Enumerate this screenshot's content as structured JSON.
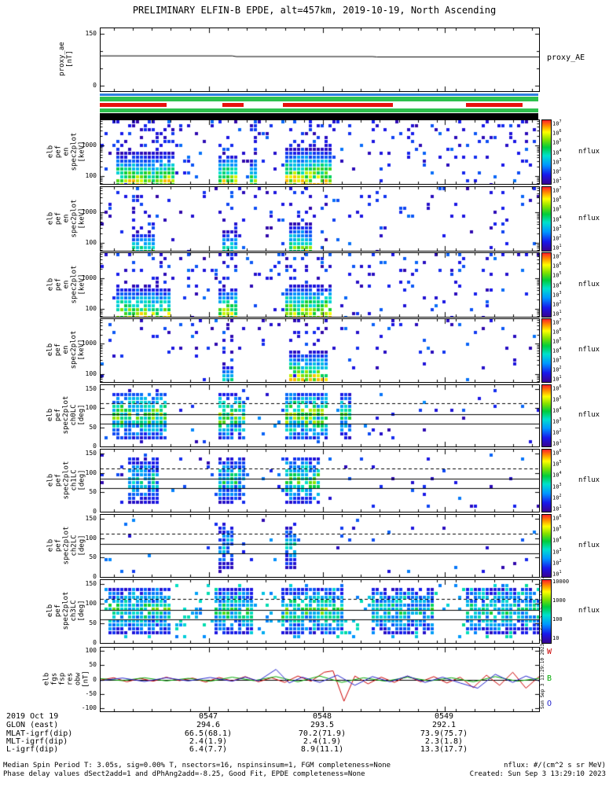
{
  "title": "PRELIMINARY ELFIN-B EPDE, alt=457km, 2019-10-19, North Ascending",
  "vertical_note": "Sun Sep 3 13:29:10 2023",
  "footer": {
    "left1": "Median Spin Period T: 3.05s, sig=0.00% T, nsectors=16, nspinsinsum=1, FGM completeness=None",
    "left2": "Phase delay values dSect2add=1 and dPhAng2add=-8.25, Good Fit, EPDE completeness=None",
    "right1": "nflux: #/(cm^2 s sr MeV)",
    "right2": "Created: Sun Sep  3 13:29:10 2023"
  },
  "ephemeris": {
    "rows": [
      {
        "label": "2019 Oct 19",
        "values": [
          "0547",
          "0548",
          "0549"
        ]
      },
      {
        "label": "GLON (east)",
        "values": [
          "294.6",
          "293.5",
          "292.1"
        ]
      },
      {
        "label": "MLAT-igrf(dip)",
        "values": [
          "66.5(68.1)",
          "70.2(71.9)",
          "73.9(75.7)"
        ]
      },
      {
        "label": "MLT-igrf(dip)",
        "values": [
          "2.4(1.9)",
          "2.4(1.9)",
          "2.3(1.8)"
        ]
      },
      {
        "label": "L-igrf(dip)",
        "values": [
          "6.4(7.7)",
          "8.9(11.1)",
          "13.3(17.7)"
        ]
      }
    ]
  },
  "position_bars": [
    {
      "name": "blue",
      "color": "#2f7fe0",
      "segments": [
        [
          0,
          1
        ]
      ]
    },
    {
      "name": "green-upper",
      "color": "#2ec14e",
      "segments": [
        [
          0,
          1
        ]
      ]
    },
    {
      "name": "red",
      "color": "#e8110e",
      "segments": [
        [
          0,
          0.152
        ],
        [
          0.28,
          0.328
        ],
        [
          0.418,
          0.668
        ],
        [
          0.835,
          0.964
        ]
      ]
    },
    {
      "name": "green-lower",
      "color": "#2ec14e",
      "segments": [
        [
          0,
          1
        ]
      ]
    },
    {
      "name": "black",
      "color": "#000000",
      "segments": [
        [
          0,
          1
        ]
      ]
    }
  ],
  "chart_data": [
    {
      "id": "proxy",
      "type": "line",
      "ylabel_lines": [
        "proxy_ae",
        "[nT]"
      ],
      "right_label": "proxy_AE",
      "ylim": [
        -15,
        165
      ],
      "yticks": [
        {
          "v": 150,
          "label": "150"
        },
        {
          "v": 100
        },
        {
          "v": 50
        },
        {
          "v": 0,
          "label": "0"
        }
      ],
      "series": [
        {
          "name": "proxy_AE",
          "color": "#000000",
          "points": [
            [
              0,
              86
            ],
            [
              0.3,
              86
            ],
            [
              0.31,
              84
            ],
            [
              0.62,
              84
            ],
            [
              0.63,
              83
            ],
            [
              1,
              83
            ]
          ]
        }
      ]
    },
    {
      "id": "en0",
      "type": "energy",
      "ylabel_lines": [
        "elb",
        "pef",
        "en",
        "spec2plot",
        "[keV]"
      ],
      "yscale": "log",
      "ylim": [
        55,
        6500
      ],
      "yticks": [
        {
          "v": 1000,
          "label": "1000"
        },
        {
          "v": 100,
          "label": "100"
        }
      ],
      "colorbar": {
        "kind": "pow10",
        "exps": [
          7,
          6,
          5,
          4,
          3,
          2,
          1
        ],
        "label": "nflux"
      },
      "seed": 11,
      "noise": 0.1,
      "bursts": [
        {
          "x0": 0.035,
          "x1": 0.17,
          "amp": 0.82,
          "eh": 0.52
        },
        {
          "x0": 0.265,
          "x1": 0.315,
          "amp": 0.85,
          "eh": 0.5
        },
        {
          "x0": 0.335,
          "x1": 0.36,
          "amp": 0.7,
          "eh": 0.42
        },
        {
          "x0": 0.42,
          "x1": 0.53,
          "amp": 0.9,
          "eh": 0.58
        }
      ]
    },
    {
      "id": "en1",
      "type": "energy",
      "ylabel_lines": [
        "elb",
        "pef",
        "en",
        "spec2plot",
        "[keV]"
      ],
      "yscale": "log",
      "ylim": [
        55,
        6500
      ],
      "yticks": [
        {
          "v": 1000,
          "label": "1000"
        },
        {
          "v": 100,
          "label": "100"
        }
      ],
      "colorbar": {
        "kind": "pow10",
        "exps": [
          7,
          6,
          5,
          4,
          3,
          2,
          1
        ],
        "label": "nflux"
      },
      "seed": 22,
      "noise": 0.05,
      "bursts": [
        {
          "x0": 0.07,
          "x1": 0.125,
          "amp": 0.55,
          "eh": 0.33
        },
        {
          "x0": 0.275,
          "x1": 0.315,
          "amp": 0.55,
          "eh": 0.35
        },
        {
          "x0": 0.43,
          "x1": 0.48,
          "amp": 0.68,
          "eh": 0.45
        }
      ]
    },
    {
      "id": "en2",
      "type": "energy",
      "ylabel_lines": [
        "elb",
        "pef",
        "en",
        "spec2plot",
        "[keV]"
      ],
      "yscale": "log",
      "ylim": [
        55,
        6500
      ],
      "yticks": [
        {
          "v": 1000,
          "label": "1000"
        },
        {
          "v": 100,
          "label": "100"
        }
      ],
      "colorbar": {
        "kind": "pow10",
        "exps": [
          7,
          6,
          5,
          4,
          3,
          2,
          1
        ],
        "label": "nflux"
      },
      "seed": 33,
      "noise": 0.08,
      "bursts": [
        {
          "x0": 0.035,
          "x1": 0.165,
          "amp": 0.78,
          "eh": 0.5
        },
        {
          "x0": 0.265,
          "x1": 0.315,
          "amp": 0.8,
          "eh": 0.5
        },
        {
          "x0": 0.42,
          "x1": 0.525,
          "amp": 0.85,
          "eh": 0.55
        }
      ]
    },
    {
      "id": "en3",
      "type": "energy",
      "ylabel_lines": [
        "elb",
        "pef",
        "en",
        "spec2plot",
        "[keV]"
      ],
      "yscale": "log",
      "ylim": [
        55,
        6500
      ],
      "yticks": [
        {
          "v": 1000,
          "label": "1000"
        },
        {
          "v": 100,
          "label": "100"
        }
      ],
      "colorbar": {
        "kind": "pow10",
        "exps": [
          7,
          6,
          5,
          4,
          3,
          2,
          1
        ],
        "label": "nflux"
      },
      "seed": 44,
      "noise": 0.05,
      "bursts": [
        {
          "x0": 0.28,
          "x1": 0.305,
          "amp": 0.45,
          "eh": 0.28
        },
        {
          "x0": 0.425,
          "x1": 0.52,
          "amp": 0.8,
          "eh": 0.5
        }
      ]
    },
    {
      "id": "ch0",
      "type": "deg",
      "ylabel_lines": [
        "elb",
        "pef",
        "spec2plot",
        "ch0LC",
        "[deg]"
      ],
      "ylim": [
        0,
        160
      ],
      "yticks": [
        {
          "v": 150,
          "label": "150"
        },
        {
          "v": 100,
          "label": "100"
        },
        {
          "v": 50,
          "label": "50"
        },
        {
          "v": 0,
          "label": "0"
        }
      ],
      "lines": [
        {
          "deg": 112,
          "style": "dashed"
        },
        {
          "deg": 85,
          "style": "solid"
        },
        {
          "deg": 60,
          "style": "solid"
        }
      ],
      "colorbar": {
        "kind": "pow10",
        "exps": [
          6,
          5,
          4,
          3,
          2,
          1
        ],
        "label": "nflux"
      },
      "seed": 55,
      "noise": 0.04,
      "noiseV": [
        0.05,
        0.3
      ],
      "bursts": [
        {
          "x0": 0.03,
          "x1": 0.15,
          "amp": 0.6
        },
        {
          "x0": 0.265,
          "x1": 0.33,
          "amp": 0.62
        },
        {
          "x0": 0.42,
          "x1": 0.52,
          "amp": 0.68
        },
        {
          "x0": 0.545,
          "x1": 0.575,
          "amp": 0.5
        }
      ]
    },
    {
      "id": "ch1",
      "type": "deg",
      "ylabel_lines": [
        "elb",
        "pef",
        "spec2plot",
        "ch1LC",
        "[deg]"
      ],
      "ylim": [
        0,
        160
      ],
      "yticks": [
        {
          "v": 150,
          "label": "150"
        },
        {
          "v": 100,
          "label": "100"
        },
        {
          "v": 50,
          "label": "50"
        },
        {
          "v": 0,
          "label": "0"
        }
      ],
      "lines": [
        {
          "deg": 112,
          "style": "dashed"
        },
        {
          "deg": 85,
          "style": "solid"
        },
        {
          "deg": 60,
          "style": "solid"
        }
      ],
      "colorbar": {
        "kind": "pow10",
        "exps": [
          6,
          5,
          4,
          3,
          2,
          1
        ],
        "label": "nflux"
      },
      "seed": 66,
      "noise": 0.03,
      "noiseV": [
        0.05,
        0.28
      ],
      "bursts": [
        {
          "x0": 0.06,
          "x1": 0.13,
          "amp": 0.42
        },
        {
          "x0": 0.265,
          "x1": 0.33,
          "amp": 0.46
        },
        {
          "x0": 0.42,
          "x1": 0.5,
          "amp": 0.55
        }
      ]
    },
    {
      "id": "ch2",
      "type": "deg",
      "ylabel_lines": [
        "elb",
        "pef",
        "spec2plot",
        "ch2LC",
        "[deg]"
      ],
      "ylim": [
        0,
        160
      ],
      "yticks": [
        {
          "v": 150,
          "label": "150"
        },
        {
          "v": 100,
          "label": "100"
        },
        {
          "v": 50,
          "label": "50"
        },
        {
          "v": 0,
          "label": "0"
        }
      ],
      "lines": [
        {
          "deg": 112,
          "style": "dashed"
        },
        {
          "deg": 85,
          "style": "solid"
        },
        {
          "deg": 60,
          "style": "solid"
        }
      ],
      "colorbar": {
        "kind": "pow10",
        "exps": [
          6,
          5,
          4,
          3,
          2,
          1
        ],
        "label": "nflux"
      },
      "seed": 77,
      "noise": 0.025,
      "noiseV": [
        0.05,
        0.3
      ],
      "bursts": [
        {
          "x0": 0.27,
          "x1": 0.3,
          "amp": 0.34
        },
        {
          "x0": 0.42,
          "x1": 0.45,
          "amp": 0.36
        }
      ]
    },
    {
      "id": "ch3",
      "type": "deg",
      "ylabel_lines": [
        "elb",
        "pef",
        "spec2plot",
        "ch3LC",
        "[deg]"
      ],
      "ylim": [
        0,
        160
      ],
      "yticks": [
        {
          "v": 150,
          "label": "150"
        },
        {
          "v": 100,
          "label": "100"
        },
        {
          "v": 50,
          "label": "50"
        },
        {
          "v": 0,
          "label": "0"
        }
      ],
      "lines": [
        {
          "deg": 112,
          "style": "dashed"
        },
        {
          "deg": 85,
          "style": "solid"
        },
        {
          "deg": 60,
          "style": "solid"
        }
      ],
      "colorbar": {
        "kind": "plain",
        "labels": [
          "10000",
          "1000",
          "100",
          "10"
        ],
        "label": "nflux"
      },
      "seed": 88,
      "noise": 0.1,
      "noiseV": [
        0.25,
        0.5
      ],
      "bursts": [
        {
          "x0": 0.02,
          "x1": 0.165,
          "amp": 0.5
        },
        {
          "x0": 0.26,
          "x1": 0.35,
          "amp": 0.5
        },
        {
          "x0": 0.41,
          "x1": 0.55,
          "amp": 0.55
        },
        {
          "x0": 0.62,
          "x1": 0.76,
          "amp": 0.46
        },
        {
          "x0": 0.83,
          "x1": 1.0,
          "amp": 0.46
        }
      ]
    },
    {
      "id": "bfield",
      "type": "multiline",
      "ylabel_lines": [
        "elb",
        "fgs",
        "fsp",
        "res",
        "obw",
        "[nT]"
      ],
      "ylim": [
        -110,
        110
      ],
      "yticks": [
        {
          "v": 100,
          "label": "100"
        },
        {
          "v": 50,
          "label": "50"
        },
        {
          "v": 0,
          "label": "0"
        },
        {
          "v": -50,
          "label": "-50"
        },
        {
          "v": -100,
          "label": "-100"
        }
      ],
      "right_labels": [
        {
          "text": "W",
          "color": "#cc0000"
        },
        {
          "text": "B",
          "color": "#00aa00"
        },
        {
          "text": "O",
          "color": "#2222cc"
        }
      ],
      "series": [
        {
          "name": "W",
          "color": "#cc0000",
          "points": [
            [
              0,
              -2
            ],
            [
              0.03,
              6
            ],
            [
              0.06,
              -8
            ],
            [
              0.09,
              4
            ],
            [
              0.12,
              -6
            ],
            [
              0.15,
              8
            ],
            [
              0.18,
              -4
            ],
            [
              0.21,
              5
            ],
            [
              0.24,
              -9
            ],
            [
              0.27,
              7
            ],
            [
              0.3,
              -5
            ],
            [
              0.33,
              10
            ],
            [
              0.36,
              -8
            ],
            [
              0.39,
              6
            ],
            [
              0.42,
              -10
            ],
            [
              0.45,
              12
            ],
            [
              0.48,
              -6
            ],
            [
              0.51,
              25
            ],
            [
              0.53,
              30
            ],
            [
              0.555,
              -75
            ],
            [
              0.58,
              12
            ],
            [
              0.61,
              -15
            ],
            [
              0.64,
              8
            ],
            [
              0.67,
              -10
            ],
            [
              0.7,
              12
            ],
            [
              0.73,
              -8
            ],
            [
              0.76,
              10
            ],
            [
              0.79,
              -12
            ],
            [
              0.82,
              8
            ],
            [
              0.85,
              -28
            ],
            [
              0.88,
              15
            ],
            [
              0.91,
              -20
            ],
            [
              0.94,
              25
            ],
            [
              0.97,
              -30
            ],
            [
              1,
              10
            ]
          ]
        },
        {
          "name": "B",
          "color": "#00aa00",
          "points": [
            [
              0,
              3
            ],
            [
              0.05,
              -4
            ],
            [
              0.1,
              6
            ],
            [
              0.15,
              -5
            ],
            [
              0.2,
              4
            ],
            [
              0.25,
              -6
            ],
            [
              0.3,
              8
            ],
            [
              0.35,
              -4
            ],
            [
              0.4,
              10
            ],
            [
              0.45,
              -8
            ],
            [
              0.5,
              12
            ],
            [
              0.55,
              -10
            ],
            [
              0.6,
              6
            ],
            [
              0.65,
              -6
            ],
            [
              0.7,
              8
            ],
            [
              0.75,
              -5
            ],
            [
              0.8,
              6
            ],
            [
              0.85,
              -8
            ],
            [
              0.9,
              10
            ],
            [
              0.95,
              -6
            ],
            [
              1,
              4
            ]
          ]
        },
        {
          "name": "O",
          "color": "#2222cc",
          "points": [
            [
              0,
              -4
            ],
            [
              0.05,
              5
            ],
            [
              0.1,
              -7
            ],
            [
              0.15,
              6
            ],
            [
              0.2,
              -5
            ],
            [
              0.25,
              7
            ],
            [
              0.3,
              -6
            ],
            [
              0.33,
              8
            ],
            [
              0.36,
              -5
            ],
            [
              0.4,
              35
            ],
            [
              0.43,
              -12
            ],
            [
              0.46,
              8
            ],
            [
              0.5,
              -10
            ],
            [
              0.54,
              15
            ],
            [
              0.58,
              -20
            ],
            [
              0.62,
              10
            ],
            [
              0.66,
              -8
            ],
            [
              0.7,
              12
            ],
            [
              0.74,
              -10
            ],
            [
              0.78,
              8
            ],
            [
              0.82,
              -12
            ],
            [
              0.86,
              -30
            ],
            [
              0.9,
              18
            ],
            [
              0.94,
              -10
            ],
            [
              0.97,
              12
            ],
            [
              1,
              -5
            ]
          ]
        }
      ]
    }
  ]
}
